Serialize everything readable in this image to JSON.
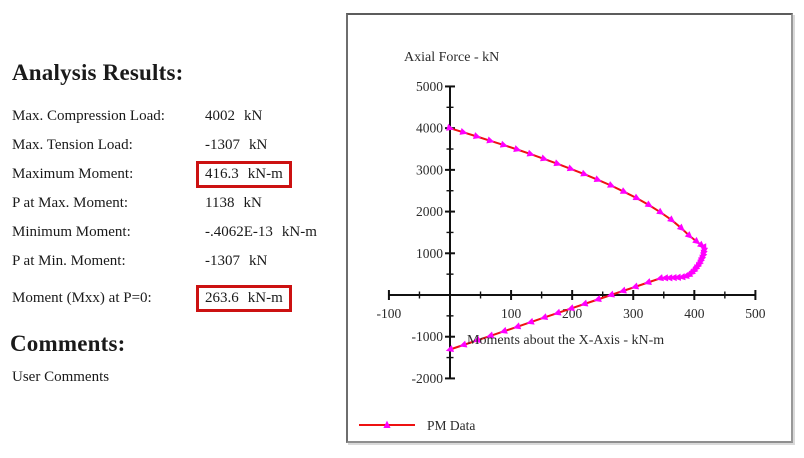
{
  "analysis": {
    "heading": "Analysis Results:",
    "highlight_color": "#cc1111",
    "rows": [
      {
        "label": "Max. Compression Load:",
        "value": "4002",
        "unit": "kN",
        "highlighted": false
      },
      {
        "label": "Max. Tension Load:",
        "value": "-1307",
        "unit": "kN",
        "highlighted": false
      },
      {
        "label": "Maximum Moment:",
        "value": "416.3",
        "unit": "kN-m",
        "highlighted": true
      },
      {
        "label": "P at Max. Moment:",
        "value": "1138",
        "unit": "kN",
        "highlighted": false
      },
      {
        "label": "Minimum Moment:",
        "value": "-.4062E-13",
        "unit": "kN-m",
        "highlighted": false
      },
      {
        "label": "P at Min. Moment:",
        "value": "-1307",
        "unit": "kN",
        "highlighted": false
      },
      {
        "label": "Moment (Mxx) at P=0:",
        "value": "263.6",
        "unit": "kN-m",
        "highlighted": true
      }
    ]
  },
  "comments": {
    "heading": "Comments:",
    "body": "User Comments"
  },
  "chart_data": {
    "type": "line",
    "title": "",
    "y_axis_label": "Axial Force - kN",
    "x_axis_label": "Moments about the X-Axis - kN-m",
    "xlim": [
      -100,
      500
    ],
    "ylim": [
      -2000,
      5000
    ],
    "x_major_step": 100,
    "x_minor_step": 50,
    "y_major_step": 1000,
    "y_minor_step": 500,
    "x_tick_labels": [
      "-100",
      "100",
      "200",
      "300",
      "400",
      "500"
    ],
    "y_tick_labels": [
      "5000",
      "4000",
      "3000",
      "2000",
      "1000",
      "-1000",
      "-2000"
    ],
    "grid": false,
    "legend_position": "bottom-left",
    "colors": {
      "line": "#ee1111",
      "marker": "#ff00ff",
      "axis": "#111111",
      "text": "#2b2b2b"
    },
    "series": [
      {
        "name": "PM Data",
        "marker": "triangle",
        "points": [
          [
            0,
            4000
          ],
          [
            22,
            3900
          ],
          [
            44,
            3800
          ],
          [
            66,
            3698
          ],
          [
            88,
            3594
          ],
          [
            110,
            3488
          ],
          [
            132,
            3378
          ],
          [
            154,
            3264
          ],
          [
            176,
            3146
          ],
          [
            198,
            3024
          ],
          [
            220,
            2896
          ],
          [
            242,
            2762
          ],
          [
            264,
            2622
          ],
          [
            285,
            2475
          ],
          [
            306,
            2320
          ],
          [
            326,
            2155
          ],
          [
            345,
            1980
          ],
          [
            363,
            1795
          ],
          [
            379,
            1600
          ],
          [
            392,
            1420
          ],
          [
            404,
            1280
          ],
          [
            412,
            1190
          ],
          [
            416.3,
            1138
          ],
          [
            416,
            1070
          ],
          [
            415,
            1000
          ],
          [
            414,
            935
          ],
          [
            412,
            870
          ],
          [
            410,
            808
          ],
          [
            408,
            748
          ],
          [
            405,
            690
          ],
          [
            402,
            634
          ],
          [
            399,
            580
          ],
          [
            395,
            528
          ],
          [
            391,
            478
          ],
          [
            386,
            448
          ],
          [
            380,
            430
          ],
          [
            373,
            420
          ],
          [
            366,
            414
          ],
          [
            359,
            410
          ],
          [
            352,
            408
          ],
          [
            344,
            398
          ],
          [
            324,
            299
          ],
          [
            303,
            195
          ],
          [
            283,
            96
          ],
          [
            263.6,
            0
          ],
          [
            242,
            -107
          ],
          [
            220,
            -216
          ],
          [
            198,
            -325
          ],
          [
            176,
            -434
          ],
          [
            154,
            -543
          ],
          [
            132,
            -653
          ],
          [
            110,
            -762
          ],
          [
            88,
            -871
          ],
          [
            66,
            -980
          ],
          [
            44,
            -1089
          ],
          [
            22,
            -1198
          ],
          [
            0,
            -1307
          ]
        ]
      }
    ]
  }
}
